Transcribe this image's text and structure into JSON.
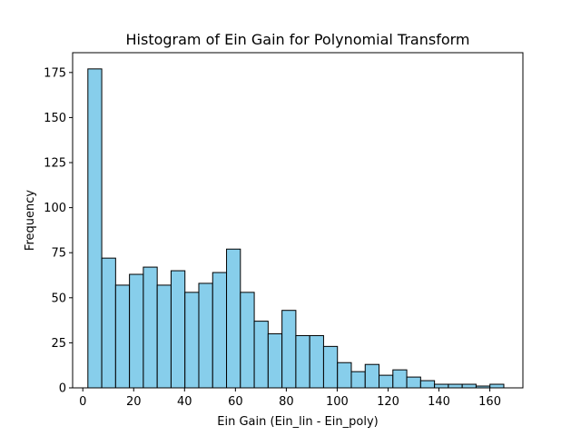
{
  "chart_data": {
    "type": "bar",
    "title": "Histogram of Ein Gain for Polynomial Transform",
    "xlabel": "Ein Gain (Ein_lin - Ein_poly)",
    "ylabel": "Frequency",
    "bin_edges": [
      2.0,
      7.45,
      12.9,
      18.35,
      23.8,
      29.25,
      34.7,
      40.15,
      45.6,
      51.05,
      56.5,
      61.95,
      67.4,
      72.85,
      78.3,
      83.75,
      89.2,
      94.65,
      100.1,
      105.55,
      111.0,
      116.45,
      121.9,
      127.35,
      132.8,
      138.25,
      143.7,
      149.15,
      154.6,
      160.05,
      165.5
    ],
    "values": [
      177,
      72,
      57,
      63,
      67,
      57,
      65,
      53,
      58,
      64,
      77,
      53,
      37,
      30,
      43,
      29,
      29,
      23,
      14,
      9,
      13,
      7,
      10,
      6,
      4,
      2,
      2,
      2,
      1,
      2
    ],
    "xlim": [
      -4,
      173
    ],
    "ylim": [
      0,
      186
    ],
    "xticks": [
      0,
      20,
      40,
      60,
      80,
      100,
      120,
      140,
      160
    ],
    "yticks": [
      0,
      25,
      50,
      75,
      100,
      125,
      150,
      175
    ],
    "bar_color": "#87ceeb",
    "edge_color": "#000000",
    "grid": false
  }
}
